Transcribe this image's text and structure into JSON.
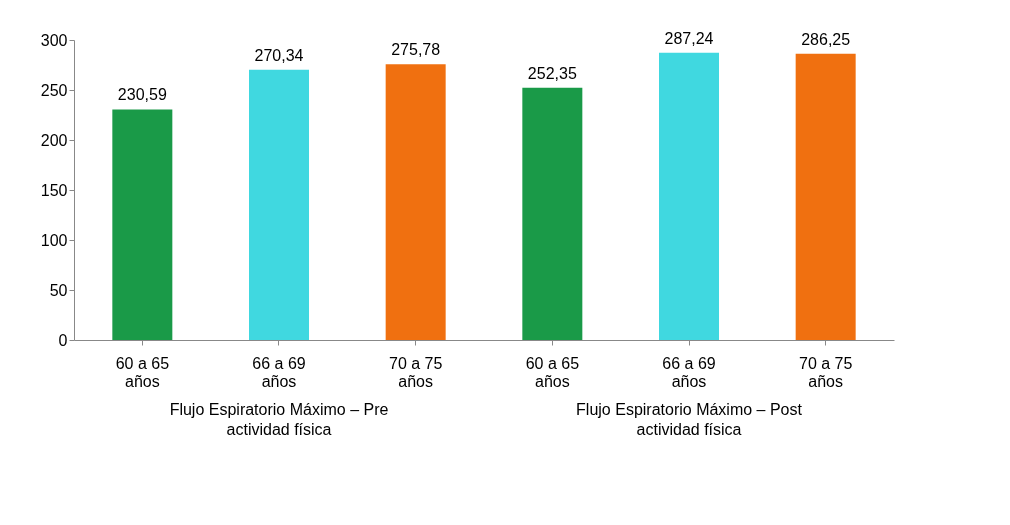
{
  "chart_data": {
    "type": "bar",
    "categories": [
      "60 a 65 años",
      "66 a 69 años",
      "70 a 75 años",
      "60 a 65 años",
      "66 a 69 años",
      "70 a 75 años"
    ],
    "values": [
      230.59,
      270.34,
      275.78,
      252.35,
      287.24,
      286.25
    ],
    "colors": [
      "#1a9a48",
      "#40d8e0",
      "#f07010",
      "#1a9a48",
      "#40d8e0",
      "#f07010"
    ],
    "value_labels": [
      "230,59",
      "270,34",
      "275,78",
      "252,35",
      "287,24",
      "286,25"
    ],
    "ylim": [
      0,
      300
    ],
    "yticks": [
      0,
      50,
      100,
      150,
      200,
      250,
      300
    ],
    "grid": false,
    "annotations": [
      "Flujo  Espiratorio Máximo – Pre actividad física",
      "Flujo Espiratorio Máximo – Post actividad física"
    ]
  }
}
